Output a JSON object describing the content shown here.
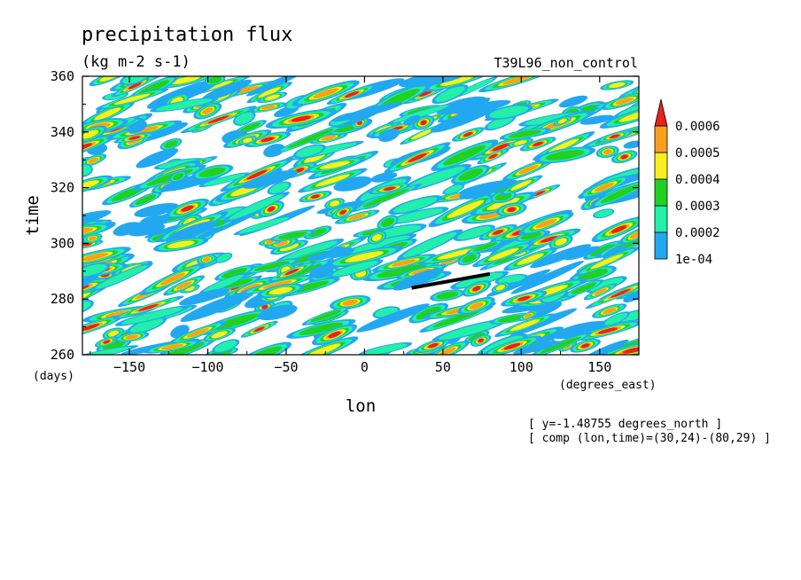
{
  "chart_data": {
    "type": "heatmap",
    "title": "precipitation flux",
    "units": "(kg m-2 s-1)",
    "experiment": "T39L96_non_control",
    "xlabel": "lon",
    "ylabel": "time",
    "x_unit": "(degrees_east)",
    "y_unit": "(days)",
    "xlim": [
      -180,
      175
    ],
    "ylim": [
      260,
      360
    ],
    "x_ticks": [
      -150,
      -100,
      -50,
      0,
      50,
      100,
      150
    ],
    "y_ticks": [
      260,
      280,
      300,
      320,
      340,
      360
    ],
    "colorbar": {
      "levels": [
        "1e-04",
        "0.0002",
        "0.0003",
        "0.0004",
        "0.0005",
        "0.0006"
      ],
      "colors": [
        "#22a8f0",
        "#22f0a8",
        "#22d022",
        "#f8f022",
        "#f8a01e",
        "#e8221e"
      ],
      "extend": "max"
    },
    "annotation_line": {
      "lon": [
        30,
        80
      ],
      "time": [
        284,
        289
      ]
    },
    "notes": [
      "[ y=-1.48755 degrees_north ]",
      "[ comp (lon,time)=(30,24)-(80,29) ]"
    ]
  }
}
